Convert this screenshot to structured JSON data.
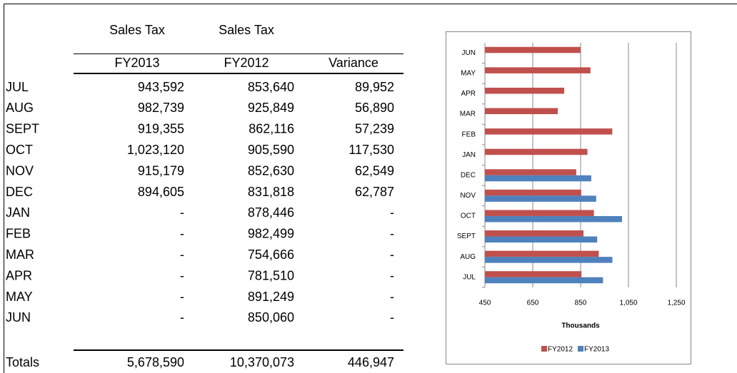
{
  "table": {
    "group_headers": [
      "Sales Tax",
      "Sales Tax"
    ],
    "headers": [
      "FY2013",
      "FY2012",
      "Variance"
    ],
    "rows": [
      [
        "JUL",
        "943,592",
        "853,640",
        "89,952"
      ],
      [
        "AUG",
        "982,739",
        "925,849",
        "56,890"
      ],
      [
        "SEPT",
        "919,355",
        "862,116",
        "57,239"
      ],
      [
        "OCT",
        "1,023,120",
        "905,590",
        "117,530"
      ],
      [
        "NOV",
        "915,179",
        "852,630",
        "62,549"
      ],
      [
        "DEC",
        "894,605",
        "831,818",
        "62,787"
      ],
      [
        "JAN",
        "-",
        "878,446",
        "-"
      ],
      [
        "FEB",
        "-",
        "982,499",
        "-"
      ],
      [
        "MAR",
        "-",
        "754,666",
        "-"
      ],
      [
        "APR",
        "-",
        "781,510",
        "-"
      ],
      [
        "MAY",
        "-",
        "891,249",
        "-"
      ],
      [
        "JUN",
        "-",
        "850,060",
        "-"
      ]
    ],
    "totals": [
      "Totals",
      "5,678,590",
      "10,370,073",
      "446,947"
    ]
  },
  "chart_data": {
    "type": "hbar",
    "categories": [
      "JUL",
      "AUG",
      "SEPT",
      "OCT",
      "NOV",
      "DEC",
      "JAN",
      "FEB",
      "MAR",
      "APR",
      "MAY",
      "JUN"
    ],
    "series": [
      {
        "name": "FY2012",
        "color": "#c0504d",
        "values": [
          853.64,
          925.849,
          862.116,
          905.59,
          852.63,
          831.818,
          878.446,
          982.499,
          754.666,
          781.51,
          891.249,
          850.06
        ]
      },
      {
        "name": "FY2013",
        "color": "#4f81bd",
        "values": [
          943.592,
          982.739,
          919.355,
          1023.12,
          915.179,
          894.605,
          null,
          null,
          null,
          null,
          null,
          null
        ]
      }
    ],
    "x_label": "Thousands",
    "xlim": [
      450,
      1250
    ],
    "xticks": [
      450,
      650,
      850,
      {
        "value": 1050,
        "label": "1,050"
      },
      {
        "value": 1250,
        "label": "1,250"
      }
    ],
    "grid": true,
    "legend": "bottom"
  }
}
